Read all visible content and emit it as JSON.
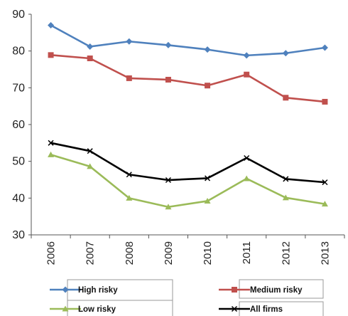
{
  "chart_data": {
    "type": "line",
    "title": "",
    "xlabel": "",
    "ylabel": "",
    "ylim": [
      30,
      90
    ],
    "yticks": [
      30,
      40,
      50,
      60,
      70,
      80,
      90
    ],
    "categories": [
      "2006",
      "2007",
      "2008",
      "2009",
      "2010",
      "2011",
      "2012",
      "2013"
    ],
    "grid": false,
    "legend_position": "bottom",
    "series": [
      {
        "name": "High risky",
        "color": "#4F81BD",
        "marker": "diamond",
        "values": [
          87.0,
          81.2,
          82.6,
          81.6,
          80.4,
          78.8,
          79.4,
          80.9
        ]
      },
      {
        "name": "Medium risky",
        "color": "#C0504D",
        "marker": "square",
        "values": [
          78.9,
          78.0,
          72.6,
          72.2,
          70.6,
          73.6,
          67.3,
          66.2
        ]
      },
      {
        "name": "Low risky",
        "color": "#9BBB59",
        "marker": "triangle",
        "values": [
          51.8,
          48.6,
          40.0,
          37.6,
          39.2,
          45.3,
          40.1,
          38.4
        ]
      },
      {
        "name": "All firms",
        "color": "#000000",
        "marker": "x",
        "values": [
          55.0,
          52.8,
          46.4,
          44.9,
          45.4,
          50.9,
          45.2,
          44.3
        ]
      }
    ]
  }
}
